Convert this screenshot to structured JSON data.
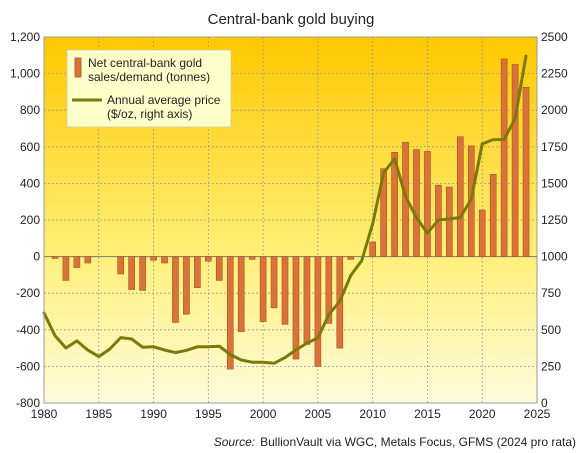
{
  "chart_data": {
    "type": "bar",
    "title": "Central-bank  gold buying",
    "source_label": "Source:",
    "source_text": "BullionVault via  WGC, Metals Focus, GFMS (2024  pro rata)",
    "xlim": [
      1980,
      2025
    ],
    "ylim_left": [
      -800,
      1200
    ],
    "ylim_right": [
      0,
      2500
    ],
    "x_ticks": [
      1980,
      1985,
      1990,
      1995,
      2000,
      2005,
      2010,
      2015,
      2020,
      2025
    ],
    "y_left_ticks": [
      -800,
      -600,
      -400,
      -200,
      0,
      200,
      400,
      600,
      800,
      "1,000",
      "1,200"
    ],
    "y_left_tick_values": [
      -800,
      -600,
      -400,
      -200,
      0,
      200,
      400,
      600,
      800,
      1000,
      1200
    ],
    "y_right_ticks": [
      0,
      250,
      500,
      750,
      1000,
      1250,
      1500,
      1750,
      2000,
      2250,
      2500
    ],
    "grid": true,
    "legend": "top-left",
    "colors": {
      "bar_fill": "#D9733A",
      "bar_stroke": "#A8521F",
      "line": "#7A7A0A",
      "grid": "#9b9b9b",
      "zero_line": "#777777",
      "bg_top": "#FFC800",
      "bg_bottom": "#FFFBDC",
      "legend_bg": "#FFFFCC"
    },
    "series": [
      {
        "name": "Net central-bank gold sales/demand (tonnes)",
        "name_lines": [
          "Net central-bank gold",
          "sales/demand (tonnes)"
        ],
        "axis": "left",
        "type": "bar",
        "x": [
          1981,
          1982,
          1983,
          1984,
          1987,
          1988,
          1989,
          1990,
          1991,
          1992,
          1993,
          1994,
          1995,
          1996,
          1997,
          1998,
          1999,
          2000,
          2001,
          2002,
          2003,
          2004,
          2005,
          2006,
          2007,
          2008,
          2010,
          2011,
          2012,
          2013,
          2014,
          2015,
          2016,
          2017,
          2018,
          2019,
          2020,
          2021,
          2022,
          2023,
          2024
        ],
        "values": [
          -10,
          -130,
          -60,
          -35,
          -95,
          -180,
          -185,
          -20,
          -35,
          -360,
          -315,
          -170,
          -25,
          -130,
          -615,
          -410,
          -15,
          -355,
          -280,
          -370,
          -560,
          -480,
          -600,
          -365,
          -500,
          -15,
          80,
          480,
          570,
          625,
          585,
          575,
          390,
          380,
          655,
          605,
          255,
          450,
          1080,
          1050,
          925
        ]
      },
      {
        "name": "Annual average price ($/oz, right axis)",
        "name_lines": [
          "Annual average price",
          "($/oz, right axis)"
        ],
        "axis": "right",
        "type": "line",
        "x": [
          1980,
          1981,
          1982,
          1983,
          1984,
          1985,
          1986,
          1987,
          1988,
          1989,
          1990,
          1991,
          1992,
          1993,
          1994,
          1995,
          1996,
          1997,
          1998,
          1999,
          2000,
          2001,
          2002,
          2003,
          2004,
          2005,
          2006,
          2007,
          2008,
          2009,
          2010,
          2011,
          2012,
          2013,
          2014,
          2015,
          2016,
          2017,
          2018,
          2019,
          2020,
          2021,
          2022,
          2023,
          2024
        ],
        "values": [
          615,
          460,
          376,
          424,
          361,
          317,
          368,
          447,
          437,
          381,
          384,
          362,
          344,
          360,
          384,
          384,
          388,
          331,
          294,
          279,
          279,
          271,
          310,
          363,
          409,
          445,
          604,
          695,
          872,
          972,
          1225,
          1572,
          1669,
          1411,
          1266,
          1160,
          1251,
          1257,
          1268,
          1393,
          1770,
          1799,
          1800,
          1943,
          2370
        ]
      }
    ]
  }
}
